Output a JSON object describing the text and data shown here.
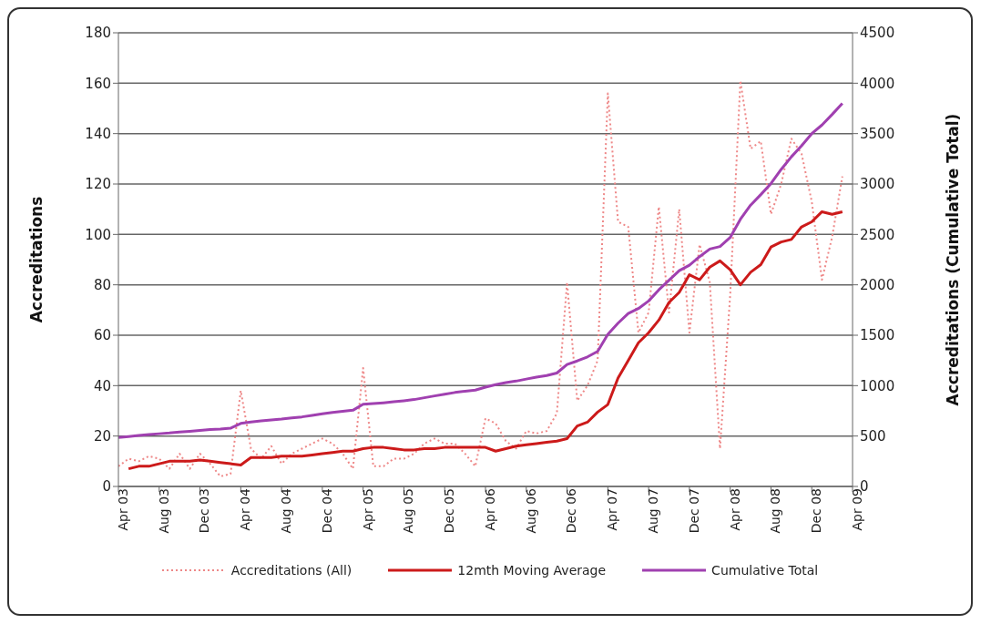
{
  "chart_data": {
    "type": "line",
    "xlabel": null,
    "ylabel": "Accreditations",
    "y2label": "Accreditations (Cumulative Total)",
    "x": [
      "2003-04",
      "2003-05",
      "2003-06",
      "2003-07",
      "2003-08",
      "2003-09",
      "2003-10",
      "2003-11",
      "2003-12",
      "2004-01",
      "2004-02",
      "2004-03",
      "2004-04",
      "2004-05",
      "2004-06",
      "2004-07",
      "2004-08",
      "2004-09",
      "2004-10",
      "2004-11",
      "2004-12",
      "2005-01",
      "2005-02",
      "2005-03",
      "2005-04",
      "2005-05",
      "2005-06",
      "2005-07",
      "2005-08",
      "2005-09",
      "2005-10",
      "2005-11",
      "2005-12",
      "2006-01",
      "2006-02",
      "2006-03",
      "2006-04",
      "2006-05",
      "2006-06",
      "2006-07",
      "2006-08",
      "2006-09",
      "2006-10",
      "2006-11",
      "2006-12",
      "2007-01",
      "2007-02",
      "2007-03",
      "2007-04",
      "2007-05",
      "2007-06",
      "2007-07",
      "2007-08",
      "2007-09",
      "2007-10",
      "2007-11",
      "2007-12",
      "2008-01",
      "2008-02",
      "2008-03",
      "2008-04",
      "2008-05",
      "2008-06",
      "2008-07",
      "2008-08",
      "2008-09",
      "2008-10",
      "2008-11",
      "2008-12",
      "2009-01",
      "2009-02",
      "2009-03"
    ],
    "series": [
      {
        "name": "Accreditations (All)",
        "color": "#ee8888",
        "line_style": "dotted",
        "values": [
          8,
          11,
          10,
          12,
          11,
          7,
          13,
          7,
          13,
          9,
          4,
          5,
          38,
          15,
          11,
          16,
          9,
          13,
          15,
          17,
          19,
          17,
          13,
          7,
          47,
          8,
          8,
          11,
          11,
          13,
          17,
          19,
          17,
          17,
          13,
          8,
          27,
          25,
          18,
          15,
          22,
          21,
          22,
          29,
          81,
          34,
          40,
          50,
          156,
          105,
          103,
          61,
          69,
          111,
          69,
          110,
          61,
          96,
          81,
          15,
          76,
          161,
          134,
          137,
          108,
          120,
          138,
          132,
          113,
          82,
          99,
          123
        ]
      },
      {
        "name": "12mth Moving Average",
        "color": "#cc1a1a",
        "line_style": "solid",
        "values": [
          null,
          7,
          8,
          8,
          9,
          10,
          10,
          10,
          10.5,
          10,
          9.5,
          9,
          8.5,
          11.5,
          11.5,
          11.5,
          12,
          12,
          12,
          12.5,
          13,
          13.5,
          14,
          14,
          15,
          15.5,
          15.5,
          15,
          14.5,
          14.5,
          15,
          15,
          15.5,
          15.5,
          15.5,
          15.5,
          15.5,
          14,
          15,
          16,
          16.5,
          17,
          17.5,
          18,
          19,
          24,
          25.5,
          29.5,
          32.5,
          43,
          50,
          57,
          61,
          66,
          73,
          77,
          84,
          82,
          87,
          89.5,
          86,
          80,
          85,
          88,
          95,
          97,
          98,
          103,
          105,
          109,
          108,
          109
        ]
      },
      {
        "name": "Cumulative Total",
        "color": "#a040b0",
        "line_style": "solid",
        "axis": "y2",
        "values": [
          485,
          495,
          505,
          515,
          523,
          530,
          540,
          547,
          555,
          565,
          570,
          578,
          625,
          640,
          650,
          660,
          668,
          680,
          690,
          705,
          720,
          735,
          745,
          756,
          815,
          822,
          830,
          840,
          850,
          862,
          880,
          898,
          915,
          932,
          945,
          955,
          985,
          1010,
          1030,
          1045,
          1065,
          1085,
          1100,
          1125,
          1210,
          1245,
          1285,
          1340,
          1510,
          1620,
          1715,
          1765,
          1840,
          1950,
          2045,
          2140,
          2195,
          2280,
          2355,
          2380,
          2470,
          2650,
          2790,
          2895,
          3005,
          3145,
          3270,
          3380,
          3500,
          3585,
          3690,
          3800
        ]
      }
    ],
    "xlim": [
      "2003-04",
      "2009-04"
    ],
    "xticks": [
      {
        "value": "2003-04",
        "label": "Apr 03"
      },
      {
        "value": "2003-08",
        "label": "Aug 03"
      },
      {
        "value": "2003-12",
        "label": "Dec 03"
      },
      {
        "value": "2004-04",
        "label": "Apr 04"
      },
      {
        "value": "2004-08",
        "label": "Aug 04"
      },
      {
        "value": "2004-12",
        "label": "Dec 04"
      },
      {
        "value": "2005-04",
        "label": "Apr 05"
      },
      {
        "value": "2005-08",
        "label": "Aug 05"
      },
      {
        "value": "2005-12",
        "label": "Dec 05"
      },
      {
        "value": "2006-04",
        "label": "Apr 06"
      },
      {
        "value": "2006-08",
        "label": "Aug 06"
      },
      {
        "value": "2006-12",
        "label": "Dec 06"
      },
      {
        "value": "2007-04",
        "label": "Apr 07"
      },
      {
        "value": "2007-08",
        "label": "Aug 07"
      },
      {
        "value": "2007-12",
        "label": "Dec 07"
      },
      {
        "value": "2008-04",
        "label": "Apr 08"
      },
      {
        "value": "2008-08",
        "label": "Aug 08"
      },
      {
        "value": "2008-12",
        "label": "Dec 08"
      },
      {
        "value": "2009-04",
        "label": "Apr 09"
      }
    ],
    "ylim": [
      0,
      180
    ],
    "yticks": [
      0,
      20,
      40,
      60,
      80,
      100,
      120,
      140,
      160,
      180
    ],
    "y2lim": [
      0,
      4500
    ],
    "y2ticks": [
      0,
      500,
      1000,
      1500,
      2000,
      2500,
      3000,
      3500,
      4000,
      4500
    ],
    "grid": "y",
    "legend": "bottom",
    "marker": "none"
  }
}
